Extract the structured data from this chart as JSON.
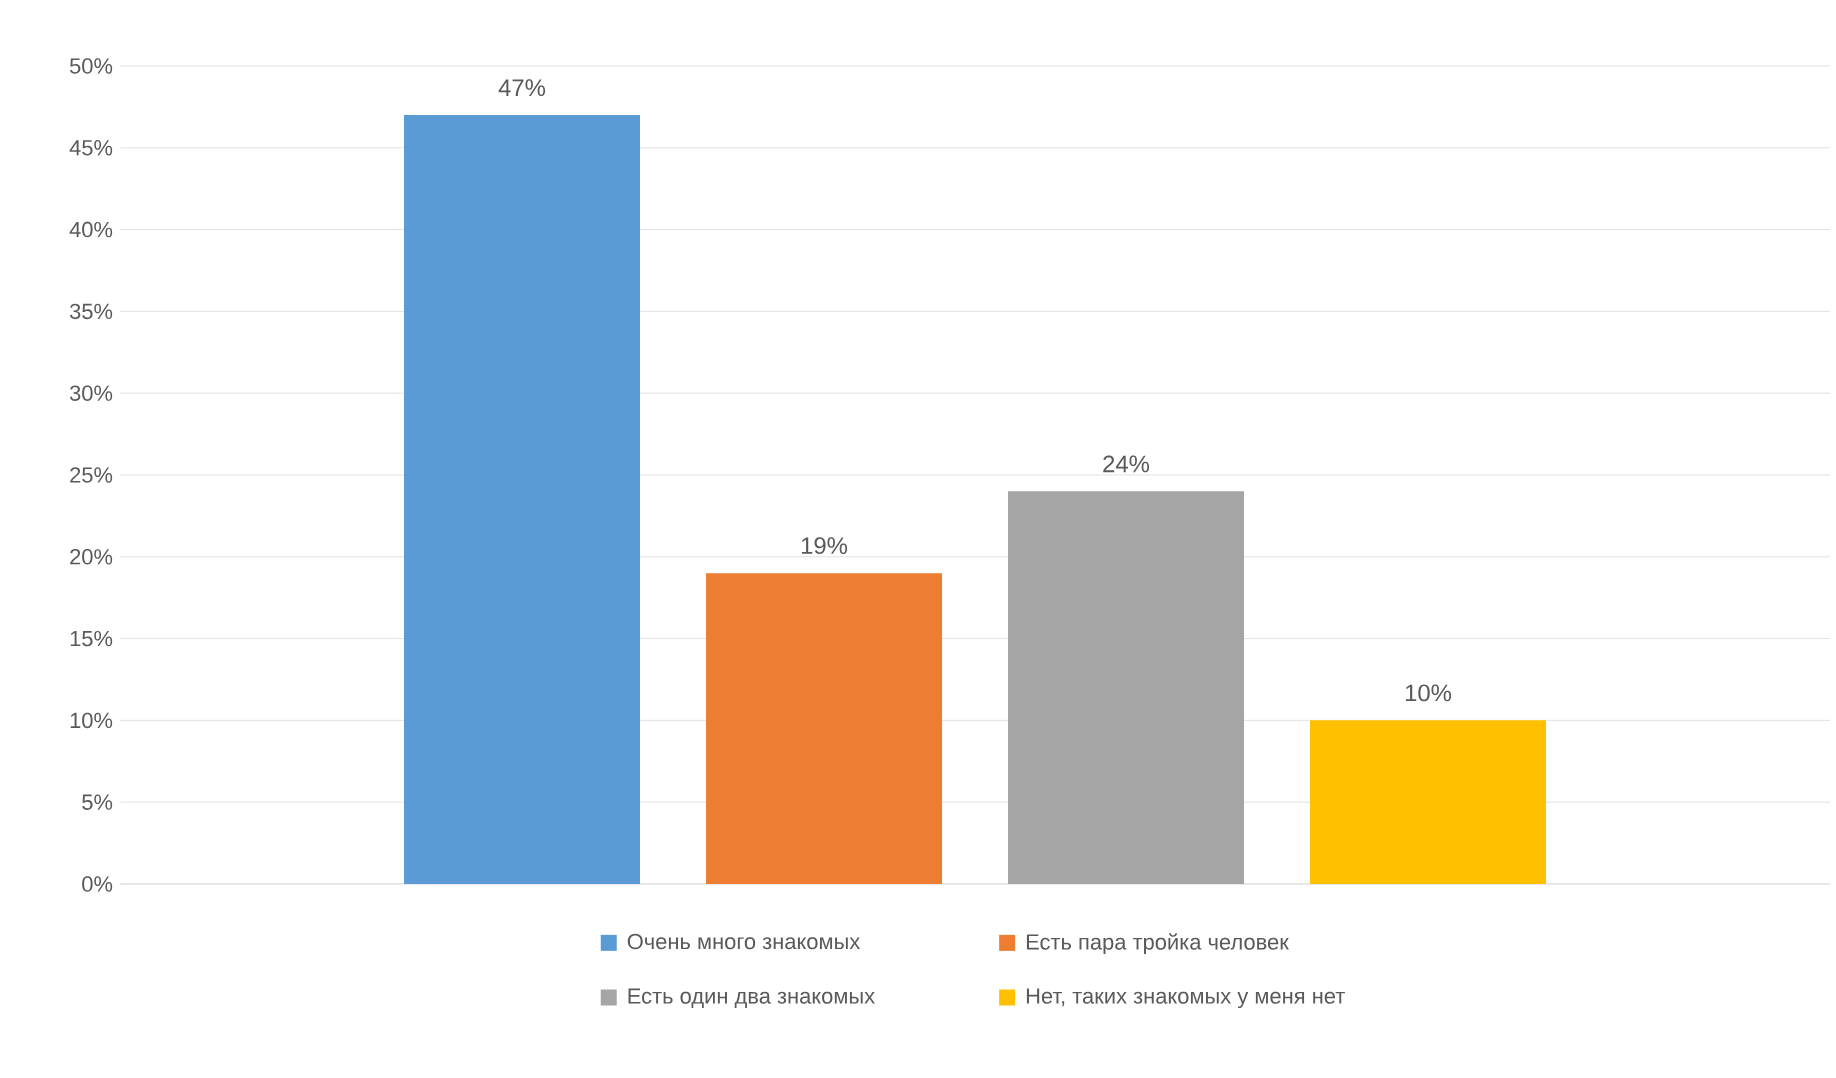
{
  "chart_data": {
    "type": "bar",
    "categories": [
      null
    ],
    "series": [
      {
        "name": "Очень много знакомых",
        "color": "#5b9bd5",
        "values": [
          47
        ],
        "value_labels": [
          "47%"
        ]
      },
      {
        "name": "Есть пара тройка человек",
        "color": "#ed7d31",
        "values": [
          19
        ],
        "value_labels": [
          "19%"
        ]
      },
      {
        "name": "Есть один два знакомых",
        "color": "#a5a5a5",
        "values": [
          24
        ],
        "value_labels": [
          "24%"
        ]
      },
      {
        "name": "Нет, таких знакомых у меня нет",
        "color": "#ffc000",
        "values": [
          10
        ],
        "value_labels": [
          "10%"
        ]
      }
    ],
    "ylim": [
      0,
      50
    ],
    "yticks": [
      {
        "value": 0,
        "label": "0%"
      },
      {
        "value": 5,
        "label": "5%"
      },
      {
        "value": 10,
        "label": "10%"
      },
      {
        "value": 15,
        "label": "15%"
      },
      {
        "value": 20,
        "label": "20%"
      },
      {
        "value": 25,
        "label": "25%"
      },
      {
        "value": 30,
        "label": "30%"
      },
      {
        "value": 35,
        "label": "35%"
      },
      {
        "value": 40,
        "label": "40%"
      },
      {
        "value": 45,
        "label": "45%"
      },
      {
        "value": 50,
        "label": "50%"
      }
    ],
    "grid": "y",
    "legend": "bottom",
    "tick_labels": "y"
  }
}
